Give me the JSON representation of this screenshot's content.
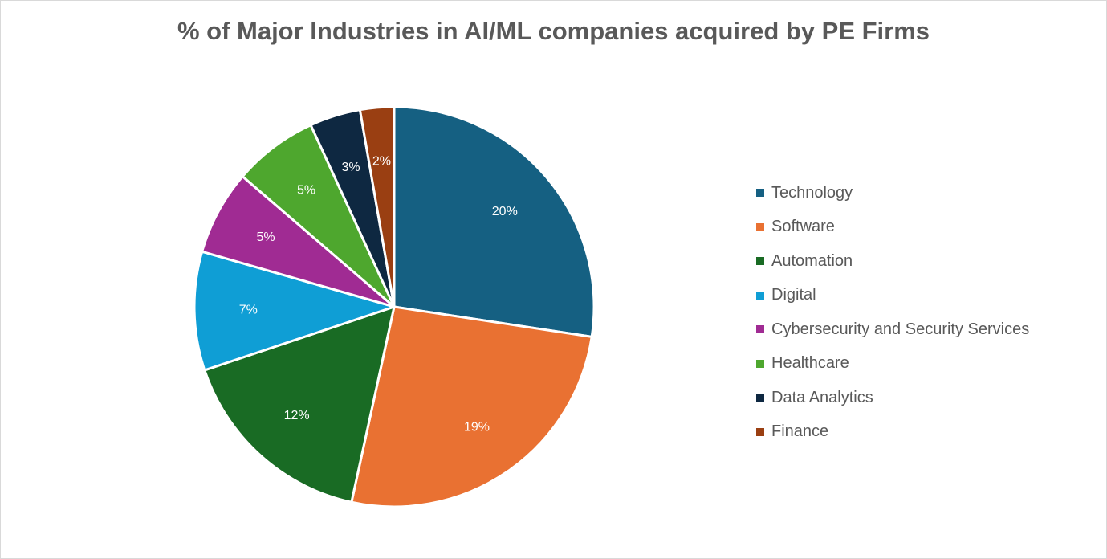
{
  "chart_data": {
    "type": "pie",
    "title": "% of Major Industries in AI/ML companies acquired by PE Firms",
    "legend_position": "right",
    "start_angle_deg": 0,
    "direction": "clockwise",
    "slices": [
      {
        "name": "Technology",
        "value": 20,
        "label": "20%",
        "color": "#156082"
      },
      {
        "name": "Software",
        "value": 19,
        "label": "19%",
        "color": "#E97132"
      },
      {
        "name": "Automation",
        "value": 12,
        "label": "12%",
        "color": "#196B24"
      },
      {
        "name": "Digital",
        "value": 7,
        "label": "7%",
        "color": "#0F9ED5"
      },
      {
        "name": "Cybersecurity and Security Services",
        "value": 5,
        "label": "5%",
        "color": "#A02B93"
      },
      {
        "name": "Healthcare",
        "value": 5,
        "label": "5%",
        "color": "#4EA72E"
      },
      {
        "name": "Data Analytics",
        "value": 3,
        "label": "3%",
        "color": "#0E2841"
      },
      {
        "name": "Finance",
        "value": 2,
        "label": "2%",
        "color": "#9A3F12"
      }
    ]
  }
}
